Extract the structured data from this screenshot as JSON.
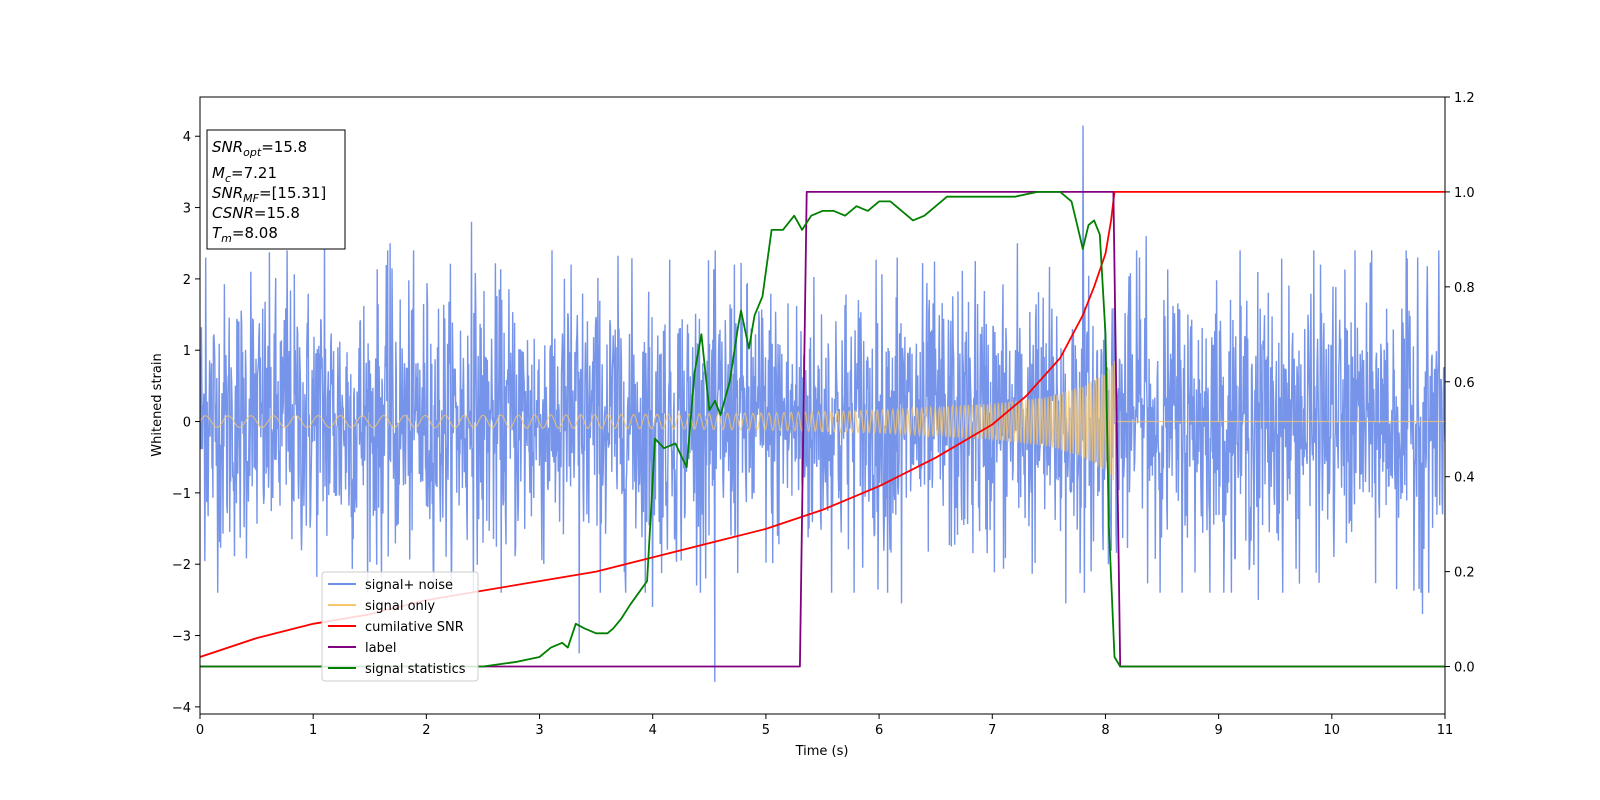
{
  "chart_data": {
    "type": "line",
    "xlabel": "Time (s)",
    "ylabel": "Whitened strain",
    "xlim": [
      0,
      11
    ],
    "ylim": [
      -4.1,
      4.55
    ],
    "y2lim": [
      -0.1,
      1.2
    ],
    "x_ticks": [
      "0",
      "1",
      "2",
      "3",
      "4",
      "5",
      "6",
      "7",
      "8",
      "9",
      "10",
      "11"
    ],
    "y_ticks": [
      "−4",
      "−3",
      "−2",
      "−1",
      "0",
      "1",
      "2",
      "3",
      "4"
    ],
    "y2_ticks": [
      "0.0",
      "0.2",
      "0.4",
      "0.6",
      "0.8",
      "1.0",
      "1.2"
    ],
    "legend_position": "lower-left",
    "info_box": {
      "snr_opt": {
        "base": "SNR",
        "sub": "opt",
        "rest": "=15.8"
      },
      "mc": {
        "base": "M",
        "sub": "c",
        "rest": "=7.21"
      },
      "snr_mf": {
        "base": "SNR",
        "sub": "MF",
        "rest": "=[15.31]"
      },
      "csnr": {
        "base": "CSNR",
        "rest": "=15.8"
      },
      "tm": {
        "base": "T",
        "sub": "m",
        "rest": "=8.08"
      }
    },
    "merger_time": 8.08,
    "series": [
      {
        "name": "signal+ noise",
        "axis": "left",
        "color": "#6f8ee8",
        "noise_std": 0.95,
        "spikes": [
          [
            0.05,
            2.3
          ],
          [
            0.45,
            2.1
          ],
          [
            0.77,
            2.4
          ],
          [
            1.1,
            2.6
          ],
          [
            1.68,
            2.5
          ],
          [
            2.4,
            2.8
          ],
          [
            3.28,
            2.2
          ],
          [
            3.35,
            -3.25
          ],
          [
            4.0,
            -2.6
          ],
          [
            4.55,
            -3.65
          ],
          [
            4.72,
            2.2
          ],
          [
            6.16,
            2.3
          ],
          [
            6.2,
            -2.55
          ],
          [
            6.85,
            2.25
          ],
          [
            7.22,
            2.5
          ],
          [
            7.65,
            -2.55
          ],
          [
            7.8,
            4.15
          ],
          [
            8.3,
            2.3
          ],
          [
            8.36,
            2.6
          ],
          [
            9.35,
            -2.5
          ],
          [
            9.9,
            2.2
          ],
          [
            10.76,
            2.3
          ],
          [
            10.8,
            -2.7
          ]
        ]
      },
      {
        "name": "signal only",
        "axis": "left",
        "color": "#f7c56b",
        "chirp_envelope": [
          [
            0.0,
            0.08
          ],
          [
            2.0,
            0.085
          ],
          [
            4.0,
            0.1
          ],
          [
            5.0,
            0.12
          ],
          [
            6.0,
            0.16
          ],
          [
            7.0,
            0.25
          ],
          [
            7.5,
            0.35
          ],
          [
            7.8,
            0.5
          ],
          [
            8.0,
            0.7
          ],
          [
            8.08,
            0.85
          ]
        ]
      },
      {
        "name": "cumilative SNR",
        "axis": "right",
        "color": "#ff0000",
        "points": [
          [
            0.0,
            0.02
          ],
          [
            0.5,
            0.06
          ],
          [
            1.0,
            0.09
          ],
          [
            1.5,
            0.11
          ],
          [
            2.0,
            0.14
          ],
          [
            2.5,
            0.16
          ],
          [
            3.0,
            0.18
          ],
          [
            3.5,
            0.2
          ],
          [
            4.0,
            0.23
          ],
          [
            4.5,
            0.26
          ],
          [
            5.0,
            0.29
          ],
          [
            5.5,
            0.33
          ],
          [
            6.0,
            0.38
          ],
          [
            6.5,
            0.44
          ],
          [
            7.0,
            0.51
          ],
          [
            7.3,
            0.57
          ],
          [
            7.6,
            0.65
          ],
          [
            7.8,
            0.74
          ],
          [
            7.9,
            0.8
          ],
          [
            8.0,
            0.87
          ],
          [
            8.05,
            0.94
          ],
          [
            8.08,
            1.0
          ],
          [
            11.0,
            1.0
          ]
        ]
      },
      {
        "name": "label",
        "axis": "right",
        "color": "#800080",
        "points": [
          [
            0.0,
            0.0
          ],
          [
            5.3,
            0.0
          ],
          [
            5.36,
            1.0
          ],
          [
            8.07,
            1.0
          ],
          [
            8.13,
            0.0
          ],
          [
            11.0,
            0.0
          ]
        ]
      },
      {
        "name": "signal statistics",
        "axis": "right",
        "color": "#008000",
        "points": [
          [
            0.0,
            0.0
          ],
          [
            2.0,
            0.0
          ],
          [
            2.5,
            0.0
          ],
          [
            2.8,
            0.01
          ],
          [
            3.0,
            0.02
          ],
          [
            3.1,
            0.04
          ],
          [
            3.2,
            0.05
          ],
          [
            3.25,
            0.04
          ],
          [
            3.32,
            0.09
          ],
          [
            3.4,
            0.08
          ],
          [
            3.5,
            0.07
          ],
          [
            3.6,
            0.07
          ],
          [
            3.65,
            0.08
          ],
          [
            3.72,
            0.1
          ],
          [
            3.8,
            0.13
          ],
          [
            3.95,
            0.18
          ],
          [
            4.02,
            0.48
          ],
          [
            4.1,
            0.46
          ],
          [
            4.2,
            0.47
          ],
          [
            4.3,
            0.42
          ],
          [
            4.37,
            0.62
          ],
          [
            4.43,
            0.7
          ],
          [
            4.5,
            0.54
          ],
          [
            4.55,
            0.56
          ],
          [
            4.6,
            0.53
          ],
          [
            4.68,
            0.6
          ],
          [
            4.75,
            0.71
          ],
          [
            4.78,
            0.75
          ],
          [
            4.85,
            0.67
          ],
          [
            4.9,
            0.74
          ],
          [
            4.97,
            0.78
          ],
          [
            5.05,
            0.92
          ],
          [
            5.15,
            0.92
          ],
          [
            5.25,
            0.95
          ],
          [
            5.32,
            0.92
          ],
          [
            5.4,
            0.95
          ],
          [
            5.5,
            0.96
          ],
          [
            5.6,
            0.96
          ],
          [
            5.7,
            0.95
          ],
          [
            5.8,
            0.97
          ],
          [
            5.9,
            0.96
          ],
          [
            6.0,
            0.98
          ],
          [
            6.1,
            0.98
          ],
          [
            6.2,
            0.96
          ],
          [
            6.3,
            0.94
          ],
          [
            6.4,
            0.95
          ],
          [
            6.5,
            0.97
          ],
          [
            6.6,
            0.99
          ],
          [
            6.8,
            0.99
          ],
          [
            7.0,
            0.99
          ],
          [
            7.2,
            0.99
          ],
          [
            7.4,
            1.0
          ],
          [
            7.6,
            1.0
          ],
          [
            7.7,
            0.98
          ],
          [
            7.75,
            0.93
          ],
          [
            7.8,
            0.88
          ],
          [
            7.85,
            0.93
          ],
          [
            7.9,
            0.94
          ],
          [
            7.95,
            0.91
          ],
          [
            8.0,
            0.7
          ],
          [
            8.03,
            0.3
          ],
          [
            8.08,
            0.02
          ],
          [
            8.13,
            0.0
          ],
          [
            11.0,
            0.0
          ]
        ]
      }
    ]
  }
}
